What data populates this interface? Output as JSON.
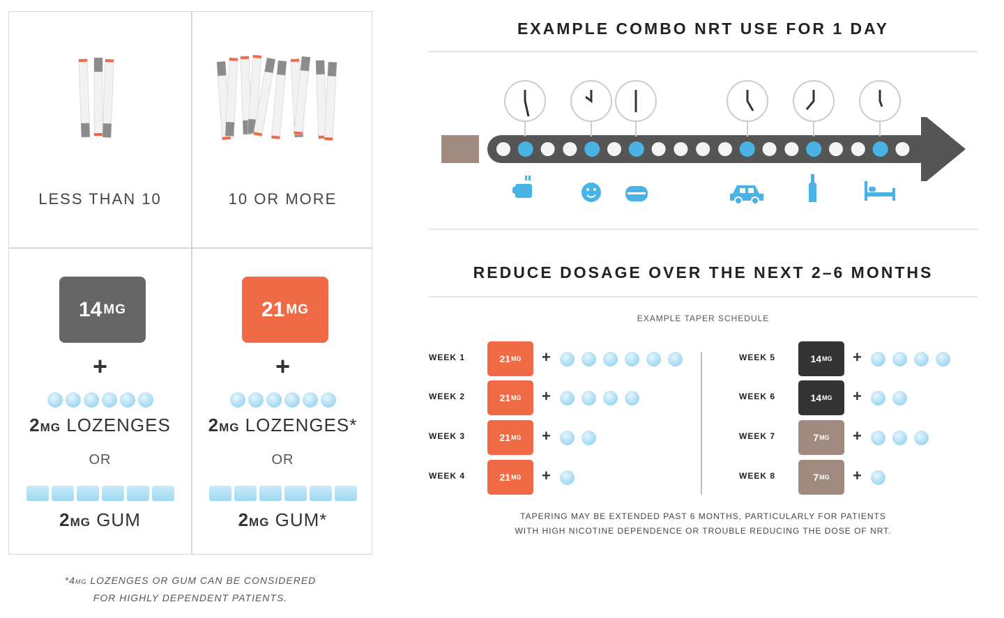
{
  "left_grid": {
    "columns": [
      {
        "label": "LESS THAN 10",
        "patch": {
          "dose": "14",
          "unit": "MG",
          "color": "#666666"
        }
      },
      {
        "label": "10 OR MORE",
        "patch": {
          "dose": "21",
          "unit": "MG",
          "color": "#f06b45"
        }
      }
    ],
    "plus": "+",
    "lozenge_a": {
      "prefix": "2",
      "unit": "MG",
      "name": " LOZENGES"
    },
    "lozenge_b": {
      "prefix": "2",
      "unit": "MG",
      "name": " LOZENGES*"
    },
    "or_a": "OR",
    "or_b": "OR",
    "gum_a": {
      "prefix": "2",
      "unit": "MG",
      "name": " GUM"
    },
    "gum_b": {
      "prefix": "2",
      "unit": "MG",
      "name": " GUM*"
    },
    "footnote_prefix": "*4",
    "footnote_unit": "MG",
    "footnote_line1": " LOZENGES OR GUM CAN BE CONSIDERED",
    "footnote_line2": "FOR HIGHLY DEPENDENT PATIENTS."
  },
  "combo": {
    "title": "EXAMPLE COMBO NRT USE FOR 1 DAY",
    "clock_icons": [
      "clock-icon",
      "clock-icon",
      "clock-icon",
      "clock-icon",
      "clock-icon",
      "clock-icon"
    ],
    "activity_icons": [
      "coffee-icon",
      "smiley-icon",
      "food-icon",
      "car-icon",
      "bottle-icon",
      "bed-icon"
    ]
  },
  "taper": {
    "title": "REDUCE DOSAGE OVER THE NEXT 2–6 MONTHS",
    "subtitle": "EXAMPLE TAPER SCHEDULE",
    "weeks": [
      {
        "label": "WEEK 1",
        "dose": "21",
        "unit": "MG",
        "color": "#f06b45",
        "lozenges": 6
      },
      {
        "label": "WEEK 2",
        "dose": "21",
        "unit": "MG",
        "color": "#f06b45",
        "lozenges": 4
      },
      {
        "label": "WEEK 3",
        "dose": "21",
        "unit": "MG",
        "color": "#f06b45",
        "lozenges": 2
      },
      {
        "label": "WEEK 4",
        "dose": "21",
        "unit": "MG",
        "color": "#f06b45",
        "lozenges": 1
      },
      {
        "label": "WEEK 5",
        "dose": "14",
        "unit": "MG",
        "color": "#333333",
        "lozenges": 4
      },
      {
        "label": "WEEK 6",
        "dose": "14",
        "unit": "MG",
        "color": "#333333",
        "lozenges": 2
      },
      {
        "label": "WEEK 7",
        "dose": "7",
        "unit": "MG",
        "color": "#a08a80",
        "lozenges": 3
      },
      {
        "label": "WEEK 8",
        "dose": "7",
        "unit": "MG",
        "color": "#a08a80",
        "lozenges": 1
      }
    ],
    "plus": "+",
    "note_line1": "TAPERING MAY BE EXTENDED PAST 6 MONTHS, PARTICULARLY FOR PATIENTS",
    "note_line2": "WITH HIGH NICOTINE DEPENDENCE OR TROUBLE REDUCING THE DOSE OF NRT."
  },
  "colors": {
    "orange": "#f06b45",
    "dark": "#333333",
    "gray": "#666666",
    "taupe": "#a08a80",
    "blue": "#4ab3e6",
    "light_blue": "#9fd8f2"
  }
}
